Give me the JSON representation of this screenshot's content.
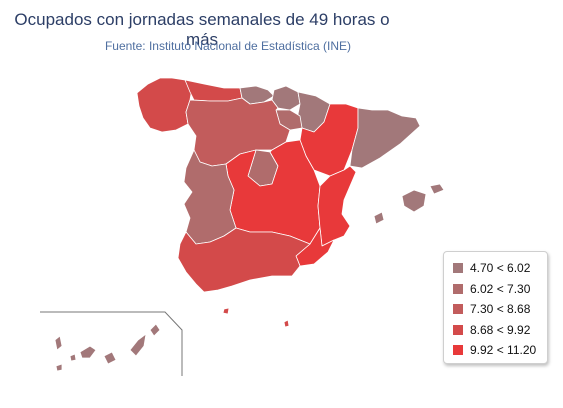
{
  "map": {
    "title": "Ocupados con jornadas semanales de 49 horas o más",
    "subtitle": "Fuente: Instituto Nacional de Estadística (INE)",
    "colors": {
      "class1": "#a2787a",
      "class2": "#b06c6c",
      "class3": "#c25c5c",
      "class4": "#d34a4a",
      "class5": "#e8393a"
    },
    "legend": [
      {
        "label": "4.70 < 6.02",
        "color": "#a2787a"
      },
      {
        "label": "6.02 < 7.30",
        "color": "#b06c6c"
      },
      {
        "label": "7.30 < 8.68",
        "color": "#c25c5c"
      },
      {
        "label": "8.68 < 9.92",
        "color": "#d34a4a"
      },
      {
        "label": "9.92 < 11.20",
        "color": "#e8393a"
      }
    ]
  }
}
